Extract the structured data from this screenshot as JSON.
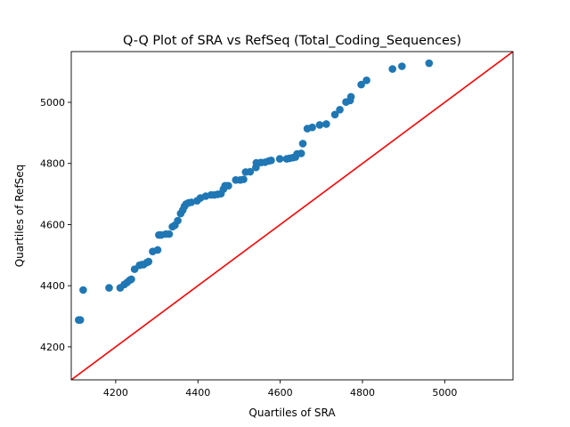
{
  "chart_data": {
    "type": "scatter",
    "title": "Q-Q Plot of SRA vs RefSeq (Total_Coding_Sequences)",
    "xlabel": "Quartiles of SRA",
    "ylabel": "Quartiles of RefSeq",
    "xlim": [
      4092,
      5166
    ],
    "ylim": [
      4092,
      5166
    ],
    "xticks": [
      4200,
      4400,
      4600,
      4800,
      5000
    ],
    "yticks": [
      4200,
      4400,
      4600,
      4800,
      5000
    ],
    "grid": false,
    "legend": "none",
    "colors": {
      "points": "#1f77b4",
      "reference_line": "#ff0000"
    },
    "reference_line": {
      "from": [
        4092,
        4092
      ],
      "to": [
        5166,
        5166
      ]
    },
    "points": [
      [
        4110,
        4288
      ],
      [
        4114,
        4288
      ],
      [
        4121,
        4386
      ],
      [
        4184,
        4393
      ],
      [
        4211,
        4393
      ],
      [
        4221,
        4404
      ],
      [
        4228,
        4411
      ],
      [
        4234,
        4418
      ],
      [
        4238,
        4421
      ],
      [
        4246,
        4454
      ],
      [
        4258,
        4467
      ],
      [
        4264,
        4469
      ],
      [
        4268,
        4469
      ],
      [
        4276,
        4476
      ],
      [
        4280,
        4479
      ],
      [
        4290,
        4512
      ],
      [
        4302,
        4517
      ],
      [
        4305,
        4566
      ],
      [
        4311,
        4566
      ],
      [
        4322,
        4569
      ],
      [
        4330,
        4569
      ],
      [
        4338,
        4593
      ],
      [
        4344,
        4598
      ],
      [
        4351,
        4613
      ],
      [
        4358,
        4636
      ],
      [
        4363,
        4647
      ],
      [
        4367,
        4659
      ],
      [
        4371,
        4667
      ],
      [
        4377,
        4671
      ],
      [
        4384,
        4673
      ],
      [
        4398,
        4678
      ],
      [
        4406,
        4687
      ],
      [
        4419,
        4693
      ],
      [
        4432,
        4697
      ],
      [
        4440,
        4697
      ],
      [
        4448,
        4699
      ],
      [
        4456,
        4701
      ],
      [
        4462,
        4716
      ],
      [
        4466,
        4727
      ],
      [
        4474,
        4727
      ],
      [
        4492,
        4746
      ],
      [
        4503,
        4746
      ],
      [
        4511,
        4748
      ],
      [
        4516,
        4772
      ],
      [
        4527,
        4773
      ],
      [
        4541,
        4787
      ],
      [
        4542,
        4802
      ],
      [
        4553,
        4803
      ],
      [
        4563,
        4804
      ],
      [
        4572,
        4808
      ],
      [
        4578,
        4810
      ],
      [
        4599,
        4815
      ],
      [
        4616,
        4815
      ],
      [
        4623,
        4817
      ],
      [
        4631,
        4819
      ],
      [
        4637,
        4821
      ],
      [
        4641,
        4831
      ],
      [
        4651,
        4833
      ],
      [
        4655,
        4865
      ],
      [
        4666,
        4914
      ],
      [
        4678,
        4918
      ],
      [
        4696,
        4926
      ],
      [
        4712,
        4929
      ],
      [
        4733,
        4960
      ],
      [
        4745,
        4976
      ],
      [
        4760,
        5001
      ],
      [
        4770,
        5006
      ],
      [
        4772,
        5018
      ],
      [
        4797,
        5058
      ],
      [
        4810,
        5072
      ],
      [
        4873,
        5109
      ],
      [
        4896,
        5118
      ],
      [
        4962,
        5128
      ]
    ]
  }
}
